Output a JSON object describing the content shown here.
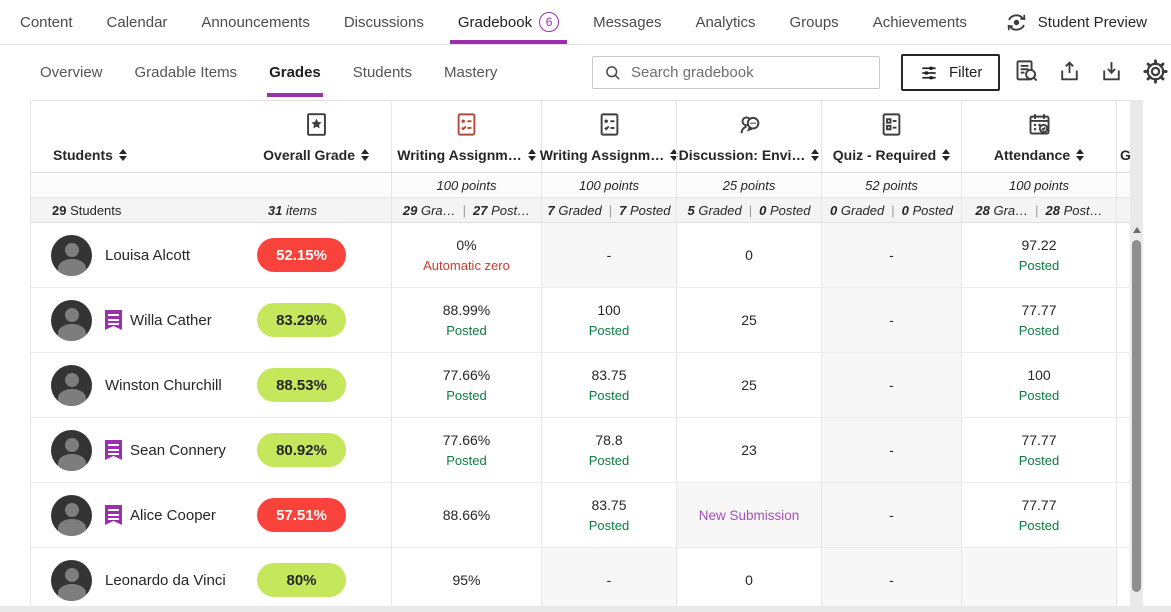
{
  "colors": {
    "purple": "#9b2fae",
    "red_pill": "#fa423c",
    "green_pill": "#c5e75b",
    "posted_green": "#0a7d3e",
    "auto_zero_red": "#cb3a32",
    "new_submission_purple": "#a550b8",
    "red_icon": "#b5473c"
  },
  "icons": {
    "top_right": "student-preview-sync-eye",
    "toolbar": [
      "search-magnifier",
      "filter-sliders",
      "doc-search",
      "upload",
      "download",
      "settings-gear"
    ],
    "columns": [
      "award",
      "assignment-graded-red",
      "assignment-graded",
      "discussion-bubble",
      "quiz-doc",
      "attendance-calendar"
    ],
    "student_flag": "accommodations-flag",
    "sort": "up-down-triangles"
  },
  "top_nav": {
    "items": [
      {
        "label": "Content"
      },
      {
        "label": "Calendar"
      },
      {
        "label": "Announcements"
      },
      {
        "label": "Discussions"
      },
      {
        "label": "Gradebook",
        "badge": "6",
        "active": true
      },
      {
        "label": "Messages"
      },
      {
        "label": "Analytics"
      },
      {
        "label": "Groups"
      },
      {
        "label": "Achievements"
      }
    ],
    "student_preview": "Student Preview"
  },
  "toolbar": {
    "tabs": [
      {
        "label": "Overview"
      },
      {
        "label": "Gradable Items"
      },
      {
        "label": "Grades",
        "active": true
      },
      {
        "label": "Students"
      },
      {
        "label": "Mastery"
      }
    ],
    "search_placeholder": "Search gradebook",
    "filter_label": "Filter"
  },
  "table": {
    "students_header": "Students",
    "overall_header": "Overall Grade",
    "summary": {
      "students_num": "29",
      "students_word": "Students",
      "items_num": "31",
      "items_word": "items"
    },
    "points_word": "points",
    "grade_columns": [
      {
        "label": "Writing Assignm…",
        "icon": "assignment",
        "red": true,
        "points": "100",
        "counts": [
          [
            "29",
            "Gra…"
          ],
          [
            "27",
            "Post…"
          ]
        ],
        "sortable": true
      },
      {
        "label": "Writing Assignm…",
        "icon": "assignment",
        "red": false,
        "points": "100",
        "counts": [
          [
            "7",
            "Graded"
          ],
          [
            "7",
            "Posted"
          ]
        ],
        "sortable": true
      },
      {
        "label": "Discussion: Envi…",
        "icon": "discussion",
        "red": false,
        "points": "25",
        "counts": [
          [
            "5",
            "Graded"
          ],
          [
            "0",
            "Posted"
          ]
        ],
        "sortable": true
      },
      {
        "label": "Quiz - Required",
        "icon": "quiz",
        "red": false,
        "points": "52",
        "counts": [
          [
            "0",
            "Graded"
          ],
          [
            "0",
            "Posted"
          ]
        ],
        "sortable": true
      },
      {
        "label": "Attendance",
        "icon": "attendance",
        "red": false,
        "points": "100",
        "counts": [
          [
            "28",
            "Gra…"
          ],
          [
            "28",
            "Post…"
          ]
        ],
        "sortable": true
      },
      {
        "label": "Gra",
        "icon": null,
        "red": false,
        "points": "",
        "counts": [],
        "sortable": false
      }
    ],
    "rows": [
      {
        "name": "Louisa Alcott",
        "flag": false,
        "pill": {
          "text": "52.15%",
          "tone": "red"
        },
        "cells": [
          {
            "main": "0%",
            "sub": "Automatic zero",
            "sub_tone": "red"
          },
          {
            "main": "-",
            "gray": true
          },
          {
            "main": "0"
          },
          {
            "main": "-",
            "gray": true
          },
          {
            "main": "97.22",
            "sub": "Posted",
            "sub_tone": "green"
          },
          {}
        ]
      },
      {
        "name": "Willa Cather",
        "flag": true,
        "pill": {
          "text": "83.29%",
          "tone": "green"
        },
        "cells": [
          {
            "main": "88.99%",
            "sub": "Posted",
            "sub_tone": "green"
          },
          {
            "main": "100",
            "sub": "Posted",
            "sub_tone": "green"
          },
          {
            "main": "25"
          },
          {
            "main": "-",
            "gray": true
          },
          {
            "main": "77.77",
            "sub": "Posted",
            "sub_tone": "green"
          },
          {}
        ]
      },
      {
        "name": "Winston Churchill",
        "flag": false,
        "pill": {
          "text": "88.53%",
          "tone": "green"
        },
        "cells": [
          {
            "main": "77.66%",
            "sub": "Posted",
            "sub_tone": "green"
          },
          {
            "main": "83.75",
            "sub": "Posted",
            "sub_tone": "green"
          },
          {
            "main": "25"
          },
          {
            "main": "-",
            "gray": true
          },
          {
            "main": "100",
            "sub": "Posted",
            "sub_tone": "green"
          },
          {}
        ]
      },
      {
        "name": "Sean Connery",
        "flag": true,
        "pill": {
          "text": "80.92%",
          "tone": "green"
        },
        "cells": [
          {
            "main": "77.66%",
            "sub": "Posted",
            "sub_tone": "green"
          },
          {
            "main": "78.8",
            "sub": "Posted",
            "sub_tone": "green"
          },
          {
            "main": "23"
          },
          {
            "main": "-",
            "gray": true
          },
          {
            "main": "77.77",
            "sub": "Posted",
            "sub_tone": "green"
          },
          {}
        ]
      },
      {
        "name": "Alice Cooper",
        "flag": true,
        "pill": {
          "text": "57.51%",
          "tone": "red"
        },
        "cells": [
          {
            "main": "88.66%"
          },
          {
            "main": "83.75",
            "sub": "Posted",
            "sub_tone": "green"
          },
          {
            "main": "New Submission",
            "tone": "purple",
            "gray": true
          },
          {
            "main": "-",
            "gray": true
          },
          {
            "main": "77.77",
            "sub": "Posted",
            "sub_tone": "green"
          },
          {}
        ]
      },
      {
        "name": "Leonardo da Vinci",
        "flag": false,
        "pill": {
          "text": "80%",
          "tone": "green"
        },
        "cells": [
          {
            "main": "95%"
          },
          {
            "main": "-",
            "gray": true
          },
          {
            "main": "0"
          },
          {
            "main": "-",
            "gray": true
          },
          {
            "main": "",
            "gray": true
          },
          {}
        ]
      }
    ]
  }
}
